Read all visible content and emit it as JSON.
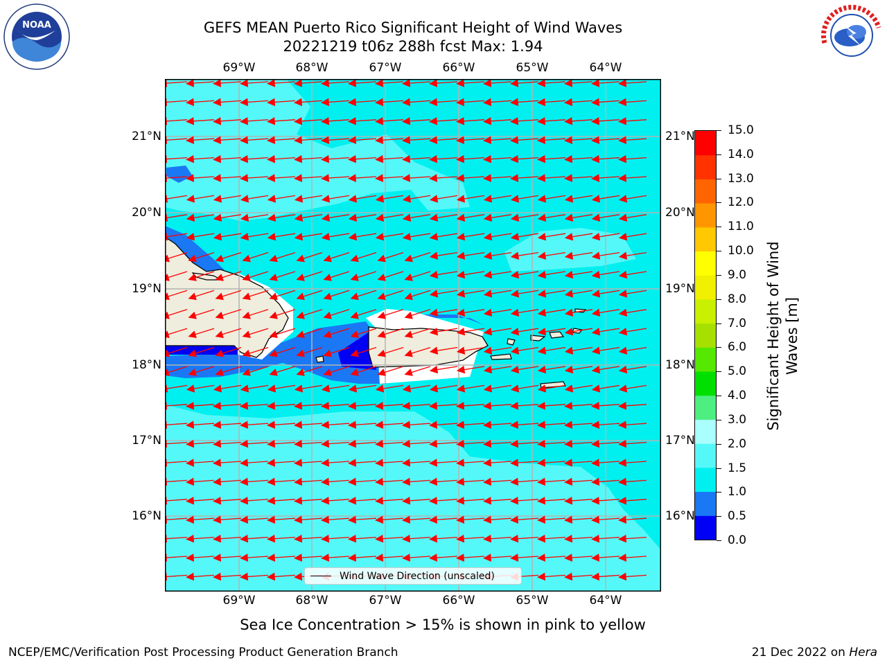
{
  "title": {
    "line1": "GEFS MEAN Puerto Rico Significant Height of Wind Waves",
    "line2": "20221219 t06z 288h fcst   Max: 1.94"
  },
  "longitude_labels": [
    "69°W",
    "68°W",
    "67°W",
    "66°W",
    "65°W",
    "64°W"
  ],
  "latitude_labels": [
    "21°N",
    "20°N",
    "19°N",
    "18°N",
    "17°N",
    "16°N"
  ],
  "legend": {
    "label": "Wind Wave Direction (unscaled)"
  },
  "colorbar": {
    "title_line1": "Significant Height of Wind",
    "title_line2": "Waves [m]",
    "tick_labels": [
      "0.0",
      "0.5",
      "1.0",
      "1.5",
      "2.0",
      "3.0",
      "4.0",
      "5.0",
      "6.0",
      "7.0",
      "8.0",
      "9.0",
      "10.0",
      "11.0",
      "12.0",
      "13.0",
      "14.0",
      "15.0"
    ],
    "colors": [
      "#0000f5",
      "#1a78f5",
      "#00f0f0",
      "#55f8f8",
      "#aafefe",
      "#4cef80",
      "#00e000",
      "#55e800",
      "#a6e000",
      "#c8f000",
      "#f0f000",
      "#ffff00",
      "#ffc800",
      "#ff9600",
      "#ff6400",
      "#ff3200",
      "#ff0000"
    ]
  },
  "map": {
    "lon_range": [
      -70.0,
      -63.25
    ],
    "lat_range": [
      15.0,
      21.75
    ],
    "land_color": "#efeddd",
    "arrow_color": "#ff0000",
    "arrow_direction": "toward west-southwest",
    "field_levels": {
      "sea_default": "1.0-1.5",
      "light_patches": "1.5-2.0",
      "near_coast": "0.5-1.0",
      "sheltered": "0.0-0.5"
    }
  },
  "logos": {
    "left": "NOAA",
    "right": "NATIONAL WEATHER SERVICE"
  },
  "subtitle": "Sea Ice Concentration > 15% is shown in pink to yellow",
  "footer": {
    "left": "NCEP/EMC/Verification Post Processing Product Generation Branch",
    "right_prefix": "21 Dec 2022 on ",
    "right_host": "Hera"
  }
}
